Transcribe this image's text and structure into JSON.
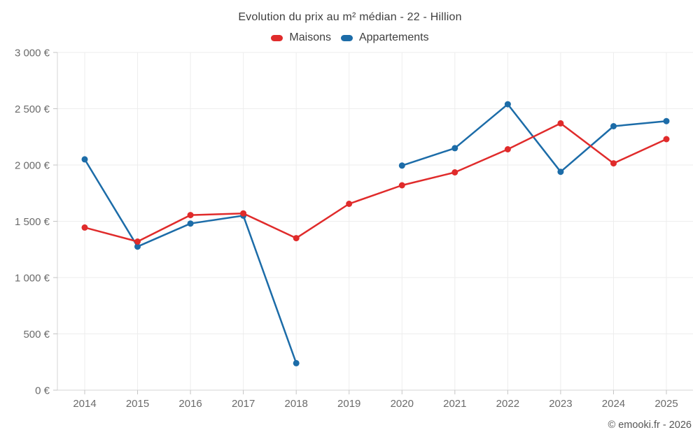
{
  "header": {
    "title": "Evolution du prix au m² médian - 22 - Hillion"
  },
  "footer": {
    "credit": "© emooki.fr - 2026"
  },
  "chart_data": {
    "type": "line",
    "title": "Evolution du prix au m² médian - 22 - Hillion",
    "categories": [
      2014,
      2015,
      2016,
      2017,
      2018,
      2019,
      2020,
      2021,
      2022,
      2023,
      2024,
      2025
    ],
    "series": [
      {
        "name": "Maisons",
        "color": "#e02b2b",
        "values": [
          1445,
          1320,
          1555,
          1570,
          1350,
          1655,
          1820,
          1935,
          2140,
          2370,
          2015,
          2230
        ]
      },
      {
        "name": "Appartements",
        "color": "#1c6ca8",
        "values": [
          2050,
          1275,
          1480,
          1550,
          240,
          null,
          1995,
          2150,
          2540,
          1940,
          2345,
          2390
        ]
      }
    ],
    "ylim": [
      0,
      3000
    ],
    "ytick_step": 500,
    "y_suffix": " €",
    "grid": true,
    "legend_position": "top",
    "colors": {
      "grid": "#ededed",
      "axis": "#d6d6d6",
      "tick": "#c4c4c4",
      "label": "#6b6b6b"
    }
  }
}
